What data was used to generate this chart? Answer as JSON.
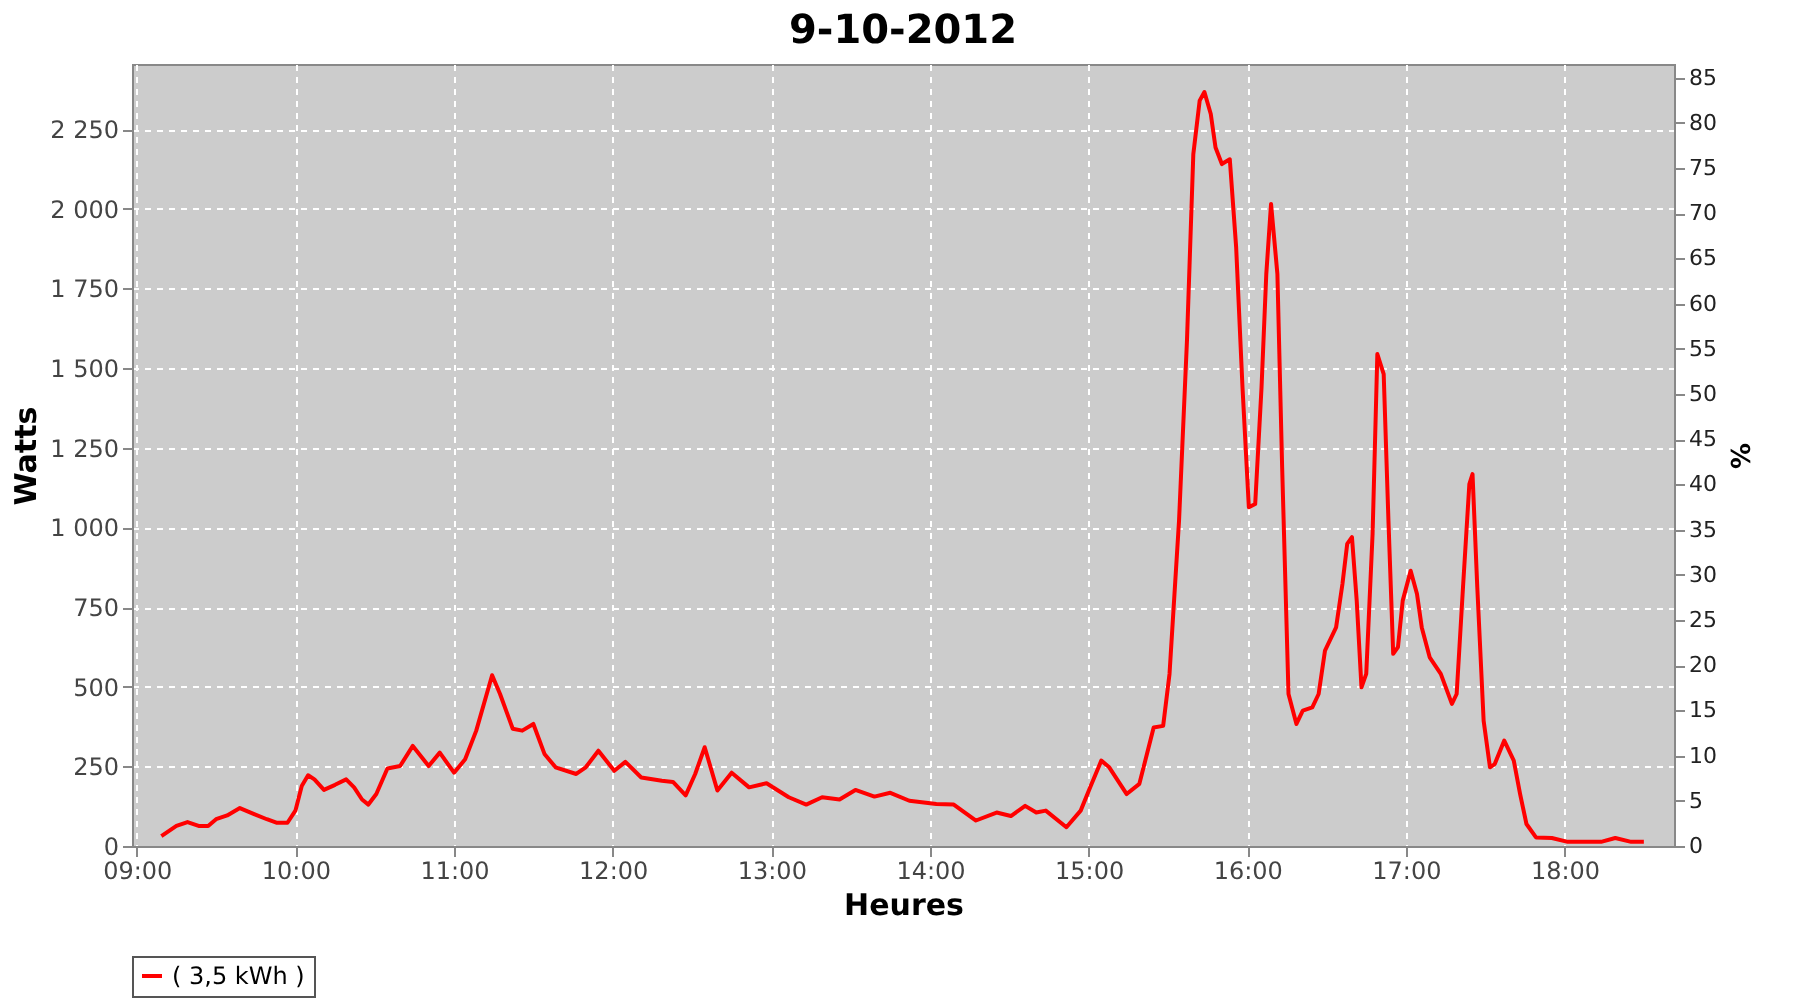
{
  "chart_data": {
    "type": "line",
    "title": "9-10-2012",
    "xlabel": "Heures",
    "ylabel": "Watts",
    "y2label": "%",
    "x": [
      9.155,
      9.25,
      9.32,
      9.39,
      9.45,
      9.5,
      9.57,
      9.65,
      9.74,
      9.82,
      9.88,
      9.95,
      10.0,
      10.04,
      10.08,
      10.12,
      10.18,
      10.25,
      10.32,
      10.37,
      10.42,
      10.46,
      10.51,
      10.58,
      10.66,
      10.74,
      10.84,
      10.91,
      11.0,
      11.07,
      11.14,
      11.24,
      11.29,
      11.37,
      11.43,
      11.5,
      11.57,
      11.64,
      11.77,
      11.83,
      11.91,
      12.01,
      12.08,
      12.18,
      12.31,
      12.38,
      12.46,
      12.52,
      12.58,
      12.66,
      12.75,
      12.86,
      12.97,
      13.11,
      13.22,
      13.32,
      13.43,
      13.53,
      13.65,
      13.75,
      13.87,
      14.04,
      14.15,
      14.29,
      14.42,
      14.51,
      14.6,
      14.67,
      14.73,
      14.86,
      14.95,
      15.01,
      15.08,
      15.13,
      15.24,
      15.32,
      15.41,
      15.47,
      15.51,
      15.57,
      15.62,
      15.66,
      15.7,
      15.73,
      15.77,
      15.8,
      15.84,
      15.89,
      15.93,
      15.97,
      16.01,
      16.05,
      16.09,
      16.12,
      16.15,
      16.19,
      16.22,
      16.26,
      16.31,
      16.35,
      16.41,
      16.45,
      16.49,
      16.56,
      16.6,
      16.63,
      16.66,
      16.69,
      16.72,
      16.75,
      16.79,
      16.82,
      16.86,
      16.89,
      16.92,
      16.95,
      16.98,
      17.03,
      17.07,
      17.1,
      17.15,
      17.22,
      17.29,
      17.32,
      17.36,
      17.4,
      17.42,
      17.45,
      17.49,
      17.53,
      17.56,
      17.62,
      17.68,
      17.72,
      17.76,
      17.82,
      17.92,
      18.02,
      18.23,
      18.32,
      18.42,
      18.5
    ],
    "series": [
      {
        "name": "( 3,5 kWh )",
        "color": "#ff0000",
        "values": [
          31,
          63,
          75,
          63,
          63,
          84,
          96,
          119,
          100,
          84,
          73,
          73,
          111,
          188,
          222,
          209,
          176,
          192,
          209,
          184,
          146,
          130,
          163,
          243,
          251,
          314,
          251,
          293,
          230,
          272,
          362,
          536,
          477,
          368,
          362,
          383,
          289,
          247,
          226,
          247,
          299,
          236,
          264,
          215,
          205,
          201,
          159,
          226,
          310,
          174,
          230,
          184,
          197,
          153,
          130,
          153,
          146,
          176,
          155,
          167,
          142,
          132,
          130,
          80,
          105,
          94,
          126,
          105,
          111,
          59,
          111,
          184,
          268,
          247,
          163,
          195,
          372,
          377,
          540,
          1021,
          1586,
          2171,
          2339,
          2366,
          2297,
          2192,
          2140,
          2155,
          1879,
          1439,
          1063,
          1073,
          1439,
          1795,
          2015,
          1795,
          1188,
          477,
          383,
          425,
          435,
          477,
          613,
          686,
          822,
          948,
          969,
          770,
          498,
          540,
          979,
          1544,
          1481,
          1021,
          603,
          624,
          770,
          864,
          791,
          686,
          592,
          540,
          446,
          477,
          812,
          1136,
          1167,
          812,
          393,
          247,
          257,
          331,
          268,
          163,
          69,
          27,
          25,
          13,
          13,
          25,
          13,
          13
        ]
      }
    ],
    "xlim": [
      8.97,
      18.69
    ],
    "xticks": [
      {
        "value": 9,
        "label": "09:00"
      },
      {
        "value": 10,
        "label": "10:00"
      },
      {
        "value": 11,
        "label": "11:00"
      },
      {
        "value": 12,
        "label": "12:00"
      },
      {
        "value": 13,
        "label": "13:00"
      },
      {
        "value": 14,
        "label": "14:00"
      },
      {
        "value": 15,
        "label": "15:00"
      },
      {
        "value": 16,
        "label": "16:00"
      },
      {
        "value": 17,
        "label": "17:00"
      },
      {
        "value": 18,
        "label": "18:00"
      }
    ],
    "ylim": [
      0,
      2454
    ],
    "yticks": [
      0,
      250,
      500,
      750,
      {
        "value": 1000,
        "label": "1 000"
      },
      {
        "value": 1250,
        "label": "1 250"
      },
      {
        "value": 1500,
        "label": "1 500"
      },
      {
        "value": 1750,
        "label": "1 750"
      },
      {
        "value": 2000,
        "label": "2 000"
      },
      {
        "value": 2250,
        "label": "2 250"
      }
    ],
    "y2lim": [
      0,
      86.5
    ],
    "y2ticks": [
      0,
      5,
      10,
      15,
      20,
      25,
      30,
      35,
      40,
      45,
      50,
      55,
      60,
      65,
      70,
      75,
      80,
      85
    ],
    "grid": true,
    "legend": "bottom",
    "line_style": "solid",
    "marker": "none"
  }
}
